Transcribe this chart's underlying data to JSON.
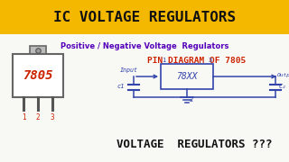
{
  "title": "IC VOLTAGE REGULATORS",
  "title_bg": "#F5B800",
  "title_color": "#111111",
  "subtitle": "Positive / Negative Voltage  Regulators",
  "subtitle_color": "#5500bb",
  "pin_diagram_title": "PIN DIAGRAM OF 7805",
  "pin_diagram_color": "#cc2200",
  "bottom_text": "VOLTAGE  REGULATORS ???",
  "bottom_color": "#111111",
  "bg_color": "#f8f8f4",
  "ic_label": "7805",
  "ic_label_color": "#cc2200",
  "circuit_color": "#3344aa",
  "circuit_label": "78XX"
}
